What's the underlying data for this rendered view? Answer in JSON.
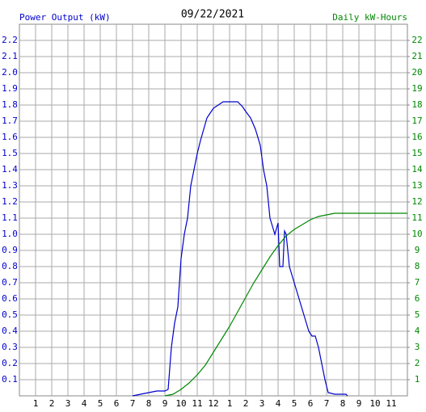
{
  "chart_data": {
    "type": "line",
    "title": "09/22/2021",
    "xlim": [
      0,
      24
    ],
    "xticks": [
      1,
      2,
      3,
      4,
      5,
      6,
      7,
      8,
      9,
      10,
      11,
      12,
      {
        "value": 13,
        "label": "1"
      },
      {
        "value": 14,
        "label": "2"
      },
      {
        "value": 15,
        "label": "3"
      },
      {
        "value": 16,
        "label": "4"
      },
      {
        "value": 17,
        "label": "5"
      },
      {
        "value": 18,
        "label": "6"
      },
      {
        "value": 19,
        "label": "7"
      },
      {
        "value": 20,
        "label": "8"
      },
      {
        "value": 21,
        "label": "9"
      },
      {
        "value": 22,
        "label": "10"
      },
      {
        "value": 23,
        "label": "11"
      }
    ],
    "ylim": [
      0,
      2.3
    ],
    "yticks": [
      0.1,
      0.2,
      0.3,
      0.4,
      0.5,
      0.6,
      0.7,
      0.8,
      0.9,
      {
        "value": 1,
        "label": "1.0"
      },
      1.1,
      1.2,
      1.3,
      1.4,
      1.5,
      1.6,
      1.7,
      1.8,
      1.9,
      {
        "value": 2,
        "label": "2.0"
      },
      2.1,
      2.2
    ],
    "y2lim": [
      0,
      23
    ],
    "y2ticks": [
      1,
      2,
      3,
      4,
      5,
      6,
      7,
      8,
      9,
      10,
      11,
      12,
      13,
      14,
      15,
      16,
      17,
      18,
      19,
      20,
      21,
      22
    ],
    "grid": true,
    "series": [
      {
        "name": "Power Output (kW)",
        "color": "#0000cc",
        "x": [
          7,
          7.5,
          8,
          8.5,
          9,
          9.2,
          9.4,
          9.6,
          9.8,
          10,
          10.2,
          10.4,
          10.6,
          10.8,
          11,
          11.2,
          11.4,
          11.6,
          11.8,
          12,
          12.3,
          12.6,
          13,
          13.5,
          13.8,
          14,
          14.3,
          14.6,
          14.9,
          15.1,
          15.3,
          15.5,
          15.8,
          16,
          16.1,
          16.3,
          16.4,
          16.5,
          16.7,
          17,
          17.3,
          17.6,
          17.9,
          18.1,
          18.3,
          18.5,
          18.7,
          18.9,
          19.1,
          19.5,
          20.2,
          20.3
        ],
        "values": [
          0,
          0.01,
          0.02,
          0.03,
          0.03,
          0.04,
          0.3,
          0.45,
          0.55,
          0.85,
          1.0,
          1.1,
          1.3,
          1.4,
          1.5,
          1.58,
          1.65,
          1.72,
          1.75,
          1.78,
          1.8,
          1.82,
          1.82,
          1.82,
          1.79,
          1.76,
          1.72,
          1.65,
          1.55,
          1.4,
          1.3,
          1.1,
          1.0,
          1.07,
          0.8,
          0.8,
          1.02,
          1.0,
          0.8,
          0.7,
          0.6,
          0.5,
          0.4,
          0.37,
          0.37,
          0.3,
          0.2,
          0.1,
          0.02,
          0.01,
          0.01,
          0
        ]
      },
      {
        "name": "Daily kW-Hours",
        "color": "#008800",
        "axis": "y2",
        "x": [
          9,
          9.5,
          10,
          10.5,
          11,
          11.5,
          12,
          12.5,
          13,
          13.5,
          14,
          14.5,
          15,
          15.5,
          16,
          16.5,
          17,
          17.5,
          18,
          18.5,
          19,
          19.5,
          24
        ],
        "values": [
          0,
          0.1,
          0.4,
          0.8,
          1.3,
          1.9,
          2.7,
          3.5,
          4.3,
          5.2,
          6.1,
          7.0,
          7.8,
          8.6,
          9.3,
          9.9,
          10.3,
          10.6,
          10.9,
          11.1,
          11.2,
          11.3,
          11.3
        ]
      }
    ]
  }
}
